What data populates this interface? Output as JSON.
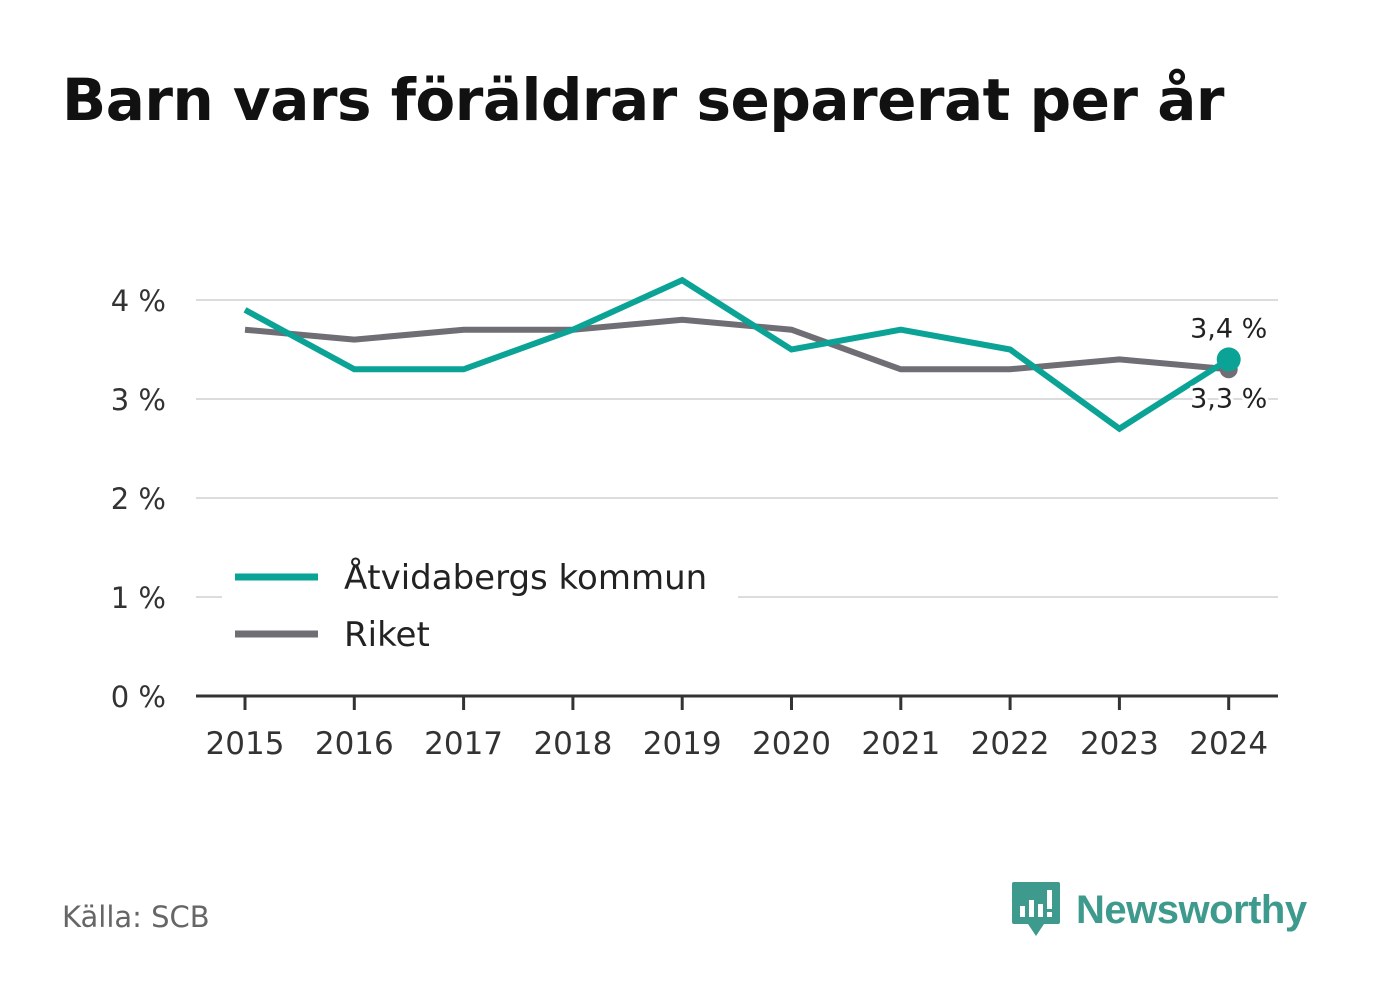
{
  "title": "Barn vars föräldrar separerat per år",
  "source": "Källa: SCB",
  "brand": {
    "name": "Newsworthy",
    "icon": "newsworthy-logo-icon"
  },
  "colors": {
    "series_1": "#0aa396",
    "series_2": "#6e6e74",
    "grid": "#dcdcdc",
    "axis": "#333333",
    "brand": "#3d9a8c"
  },
  "chart_data": {
    "type": "line",
    "x": [
      "2015",
      "2016",
      "2017",
      "2018",
      "2019",
      "2020",
      "2021",
      "2022",
      "2023",
      "2024"
    ],
    "series": [
      {
        "name": "Åtvidabergs kommun",
        "values": [
          3.9,
          3.3,
          3.3,
          3.7,
          4.2,
          3.5,
          3.7,
          3.5,
          2.7,
          3.4
        ]
      },
      {
        "name": "Riket",
        "values": [
          3.7,
          3.6,
          3.7,
          3.7,
          3.8,
          3.7,
          3.3,
          3.3,
          3.4,
          3.3
        ]
      }
    ],
    "yticks": [
      0,
      1,
      2,
      3,
      4
    ],
    "ytick_labels": [
      "0 %",
      "1 %",
      "2 %",
      "3 %",
      "4 %"
    ],
    "ylim": [
      0,
      4
    ],
    "grid": true,
    "legend_position": "bottom-left",
    "end_labels": [
      "3,4 %",
      "3,3 %"
    ]
  }
}
